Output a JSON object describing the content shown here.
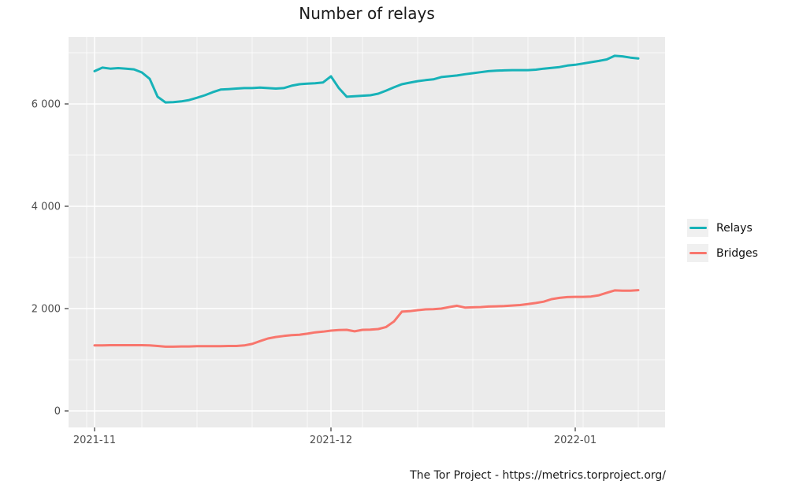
{
  "chart_data": {
    "type": "line",
    "title": "Number of relays",
    "caption": "The Tor Project - https://metrics.torproject.org/",
    "x": {
      "start_date": "2021-11-01",
      "end_date": "2022-01-09",
      "step_days": 1
    },
    "series": [
      {
        "name": "Relays",
        "color": "#17B2B8",
        "values": [
          6640,
          6710,
          6690,
          6700,
          6690,
          6675,
          6615,
          6490,
          6140,
          6030,
          6035,
          6050,
          6075,
          6120,
          6170,
          6230,
          6280,
          6290,
          6300,
          6310,
          6310,
          6320,
          6310,
          6300,
          6310,
          6355,
          6385,
          6395,
          6405,
          6420,
          6540,
          6310,
          6140,
          6150,
          6160,
          6170,
          6200,
          6260,
          6325,
          6385,
          6415,
          6445,
          6465,
          6480,
          6525,
          6540,
          6555,
          6580,
          6600,
          6620,
          6640,
          6650,
          6655,
          6660,
          6660,
          6660,
          6670,
          6690,
          6705,
          6720,
          6750,
          6765,
          6790,
          6815,
          6840,
          6870,
          6940,
          6930,
          6905,
          6890
        ]
      },
      {
        "name": "Bridges",
        "color": "#F8766D",
        "values": [
          1280,
          1280,
          1285,
          1285,
          1285,
          1285,
          1285,
          1280,
          1270,
          1255,
          1255,
          1260,
          1260,
          1265,
          1265,
          1265,
          1265,
          1270,
          1270,
          1280,
          1310,
          1365,
          1415,
          1445,
          1465,
          1480,
          1490,
          1510,
          1535,
          1550,
          1570,
          1580,
          1585,
          1555,
          1585,
          1590,
          1600,
          1640,
          1750,
          1940,
          1950,
          1970,
          1985,
          1990,
          2000,
          2030,
          2055,
          2020,
          2025,
          2030,
          2040,
          2045,
          2050,
          2060,
          2070,
          2090,
          2110,
          2135,
          2185,
          2210,
          2225,
          2230,
          2230,
          2235,
          2260,
          2310,
          2355,
          2350,
          2350,
          2360
        ]
      }
    ],
    "x_axis": {
      "ticks": [
        {
          "label": "2021-11",
          "day": 0
        },
        {
          "label": "2021-12",
          "day": 30
        },
        {
          "label": "2022-01",
          "day": 61
        }
      ],
      "minor_grid_days": [
        -1,
        6,
        13,
        20,
        27,
        34,
        41,
        48,
        55,
        62,
        69
      ]
    },
    "y_axis": {
      "ticks": [
        {
          "label": "0",
          "value": 0
        },
        {
          "label": "2 000",
          "value": 2000
        },
        {
          "label": "4 000",
          "value": 4000
        },
        {
          "label": "6 000",
          "value": 6000
        }
      ],
      "minor_grid_values": [
        1000,
        3000,
        5000,
        7000
      ]
    },
    "layout": {
      "xlim_days": [
        -3.3,
        72.4
      ],
      "ylim": [
        -323,
        7308
      ],
      "grid": true,
      "legend_position": "right"
    },
    "colors": {
      "panel_bg": "#EBEBEB",
      "grid": "#FFFFFF",
      "axis_text": "#4D4D4D",
      "tick_mark": "#333333",
      "title_text": "#1A1A1A",
      "legend_key_bg": "#F0F0F0"
    }
  }
}
